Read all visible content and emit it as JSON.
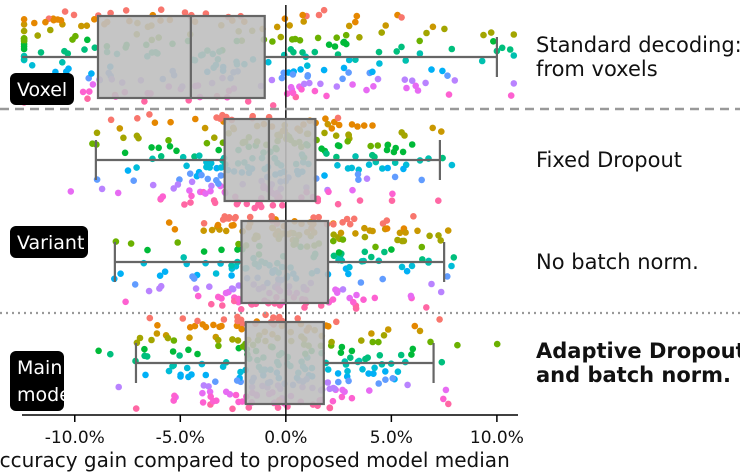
{
  "chart_data": {
    "type": "box-strip",
    "xlabel": "Accuracy gain compared to proposed model median",
    "xlim": [
      -12.5,
      11.0
    ],
    "xticks": [
      -10,
      -5,
      0,
      5,
      10
    ],
    "xtick_labels": [
      "-10.0%",
      "-5.0%",
      "0.0%",
      "5.0%",
      "10.0%"
    ],
    "groups": [
      {
        "badge": "Voxel",
        "separator_below": "dashed"
      },
      {
        "badge": "Variant",
        "separator_below": "dotted"
      },
      {
        "badge": "Main\nmodel",
        "separator_below": ""
      }
    ],
    "rows": [
      {
        "label": "Standard decoding:\nfrom voxels",
        "bold": false,
        "group": 0,
        "box": {
          "whisker_low": -12.5,
          "q1": -8.9,
          "median": -4.5,
          "q3": -1.0,
          "whisker_high": 10.0
        }
      },
      {
        "label": "Fixed Dropout",
        "bold": false,
        "group": 1,
        "box": {
          "whisker_low": -9.0,
          "q1": -2.9,
          "median": -0.8,
          "q3": 1.4,
          "whisker_high": 7.3
        }
      },
      {
        "label": "No batch norm.",
        "bold": false,
        "group": 1,
        "box": {
          "whisker_low": -8.1,
          "q1": -2.1,
          "median": 0.0,
          "q3": 2.0,
          "whisker_high": 7.5
        }
      },
      {
        "label": "Adaptive Dropout\nand batch norm.",
        "bold": true,
        "group": 2,
        "box": {
          "whisker_low": -7.1,
          "q1": -1.9,
          "median": 0.0,
          "q3": 1.8,
          "whisker_high": 7.0
        }
      }
    ],
    "point_palette": [
      "#f8766d",
      "#e58700",
      "#c99800",
      "#a3a500",
      "#6bb100",
      "#00ba38",
      "#00bf7d",
      "#00c0af",
      "#00bcd8",
      "#00b0f6",
      "#619cff",
      "#b983ff",
      "#e76bf3",
      "#fd61d1",
      "#ff67a4"
    ],
    "colors": {
      "box_fill": "#bfbfbf",
      "box_stroke": "#666666",
      "zero_line": "#222222",
      "separator": "#999999",
      "badge_bg": "#000000"
    }
  }
}
